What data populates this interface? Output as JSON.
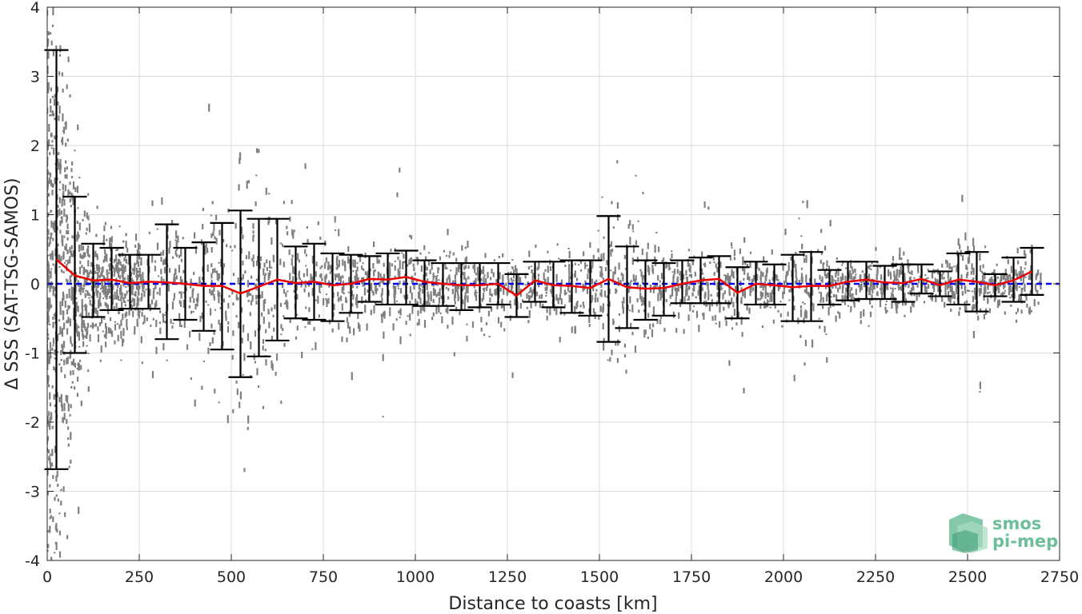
{
  "chart_data": {
    "type": "scatter",
    "xlabel": "Distance to coasts [km]",
    "ylabel": "Δ SSS (SAT-TSG-SAMOS)",
    "xlim": [
      0,
      2750
    ],
    "ylim": [
      -4,
      4
    ],
    "xticks": [
      0,
      250,
      500,
      750,
      1000,
      1250,
      1500,
      1750,
      2000,
      2250,
      2500,
      2750
    ],
    "yticks": [
      -4,
      -3,
      -2,
      -1,
      0,
      1,
      2,
      3,
      4
    ],
    "grid": true,
    "reference_line": {
      "y": 0,
      "style": "dashed",
      "color": "#0000ee"
    },
    "colors": {
      "scatter": "#808080",
      "errorbar": "#000000",
      "mean_line": "#ee0000"
    },
    "binned": {
      "x": [
        25,
        75,
        125,
        175,
        225,
        275,
        325,
        375,
        425,
        475,
        525,
        575,
        625,
        675,
        725,
        775,
        825,
        875,
        925,
        975,
        1025,
        1075,
        1125,
        1175,
        1225,
        1275,
        1325,
        1375,
        1425,
        1475,
        1525,
        1575,
        1625,
        1675,
        1725,
        1775,
        1825,
        1875,
        1925,
        1975,
        2025,
        2075,
        2125,
        2175,
        2225,
        2275,
        2325,
        2375,
        2425,
        2475,
        2525,
        2575,
        2625,
        2675
      ],
      "mean": [
        0.35,
        0.12,
        0.05,
        0.06,
        0.01,
        0.03,
        0.02,
        0.0,
        -0.03,
        -0.03,
        -0.14,
        -0.04,
        0.06,
        0.01,
        0.03,
        -0.02,
        0.0,
        0.07,
        0.06,
        0.1,
        0.03,
        0.0,
        -0.02,
        -0.02,
        0.0,
        -0.17,
        0.05,
        -0.02,
        -0.03,
        -0.06,
        0.07,
        -0.05,
        -0.07,
        -0.06,
        0.0,
        0.05,
        0.07,
        -0.13,
        0.0,
        -0.02,
        -0.05,
        -0.03,
        -0.03,
        0.03,
        0.06,
        0.02,
        0.01,
        0.07,
        -0.02,
        0.06,
        0.03,
        -0.02,
        0.05,
        0.18
      ],
      "upper": [
        3.38,
        1.26,
        0.58,
        0.52,
        0.42,
        0.42,
        0.86,
        0.52,
        0.6,
        0.88,
        1.06,
        0.94,
        0.94,
        0.54,
        0.58,
        0.44,
        0.42,
        0.4,
        0.44,
        0.48,
        0.34,
        0.3,
        0.3,
        0.3,
        0.3,
        0.14,
        0.32,
        0.32,
        0.34,
        0.34,
        0.98,
        0.54,
        0.34,
        0.3,
        0.34,
        0.38,
        0.4,
        0.24,
        0.32,
        0.28,
        0.42,
        0.46,
        0.2,
        0.32,
        0.32,
        0.26,
        0.28,
        0.28,
        0.18,
        0.44,
        0.46,
        0.14,
        0.38,
        0.52
      ],
      "lower": [
        -2.68,
        -1.0,
        -0.48,
        -0.38,
        -0.36,
        -0.36,
        -0.8,
        -0.52,
        -0.68,
        -0.95,
        -1.35,
        -1.05,
        -0.82,
        -0.5,
        -0.52,
        -0.54,
        -0.42,
        -0.26,
        -0.3,
        -0.3,
        -0.32,
        -0.32,
        -0.38,
        -0.34,
        -0.3,
        -0.48,
        -0.26,
        -0.34,
        -0.42,
        -0.46,
        -0.84,
        -0.64,
        -0.52,
        -0.46,
        -0.28,
        -0.28,
        -0.28,
        -0.5,
        -0.3,
        -0.3,
        -0.54,
        -0.54,
        -0.3,
        -0.24,
        -0.22,
        -0.22,
        -0.26,
        -0.14,
        -0.18,
        -0.3,
        -0.4,
        -0.18,
        -0.26,
        -0.16
      ]
    }
  },
  "logo": {
    "line1": "smos",
    "line2": "pi-mep",
    "colors": [
      "#6dbf9a",
      "#a8dcc2",
      "#3f9f78"
    ]
  }
}
